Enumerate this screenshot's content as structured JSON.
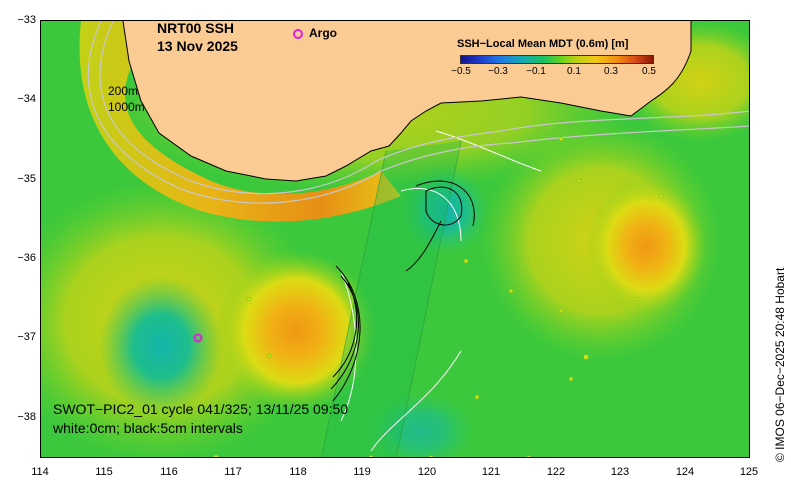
{
  "title": {
    "line1": "NRT00 SSH",
    "line2": "13 Nov 2025"
  },
  "legend": {
    "argo_label": "Argo",
    "argo_color": "#e020e0"
  },
  "colorbar": {
    "title": "SSH−Local Mean MDT (0.6m) [m]",
    "ticks": [
      "−0.5",
      "−0.3",
      "−0.1",
      "0.1",
      "0.3",
      "0.5"
    ]
  },
  "contour_labels": {
    "depth1": "200m",
    "depth2": "1000m"
  },
  "yaxis": {
    "ticks": [
      "−33",
      "−34",
      "−35",
      "−36",
      "−37",
      "−38"
    ]
  },
  "xaxis": {
    "ticks": [
      "114",
      "115",
      "116",
      "117",
      "118",
      "119",
      "120",
      "121",
      "122",
      "123",
      "124",
      "125"
    ]
  },
  "footer": {
    "line1": "SWOT−PIC2_01 cycle 041/325; 13/11/25 09:50",
    "line2": "white:0cm; black:5cm intervals"
  },
  "credit": "© IMOS 06−Dec−2025 20:48 Hobart",
  "colors": {
    "land": "#fbcb94",
    "base": "#3cc83c",
    "bg": "#ffffff"
  }
}
